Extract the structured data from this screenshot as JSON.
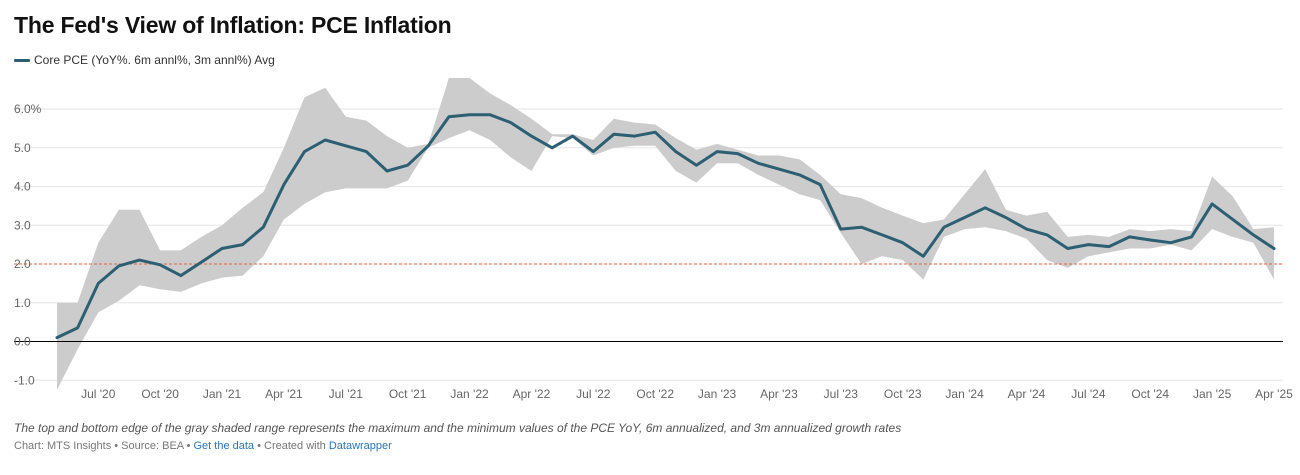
{
  "header": {
    "title": "The Fed's View of Inflation: PCE Inflation"
  },
  "legend": {
    "label": "Core PCE (YoY%. 6m annl%, 3m annl%) Avg"
  },
  "colors": {
    "line": "#2d5f73",
    "band": "#cccccc",
    "target": "#e0643a",
    "grid": "#e6e6e6",
    "zero": "#000000"
  },
  "chart_data": {
    "type": "line",
    "title": "The Fed's View of Inflation: PCE Inflation",
    "xlabel": "",
    "ylabel": "",
    "ylim": [
      -1.2,
      6.8
    ],
    "yticks": [
      -1,
      0,
      1,
      2,
      3,
      4,
      5,
      6
    ],
    "ytick_labels": [
      "-1.0",
      "0.0",
      "1.0",
      "2.0",
      "3.0",
      "4.0",
      "5.0",
      "6.0%"
    ],
    "xticks": [
      {
        "index": 2,
        "label": "Jul '20"
      },
      {
        "index": 5,
        "label": "Oct '20"
      },
      {
        "index": 8,
        "label": "Jan '21"
      },
      {
        "index": 11,
        "label": "Apr '21"
      },
      {
        "index": 14,
        "label": "Jul '21"
      },
      {
        "index": 17,
        "label": "Oct '21"
      },
      {
        "index": 20,
        "label": "Jan '22"
      },
      {
        "index": 23,
        "label": "Apr '22"
      },
      {
        "index": 26,
        "label": "Jul '22"
      },
      {
        "index": 29,
        "label": "Oct '22"
      },
      {
        "index": 32,
        "label": "Jan '23"
      },
      {
        "index": 35,
        "label": "Apr '23"
      },
      {
        "index": 38,
        "label": "Jul '23"
      },
      {
        "index": 41,
        "label": "Oct '23"
      },
      {
        "index": 44,
        "label": "Jan '24"
      },
      {
        "index": 47,
        "label": "Apr '24"
      },
      {
        "index": 50,
        "label": "Jul '24"
      },
      {
        "index": 53,
        "label": "Oct '24"
      },
      {
        "index": 56,
        "label": "Jan '25"
      },
      {
        "index": 59,
        "label": "Apr '25"
      }
    ],
    "target_line": 2.0,
    "series": [
      {
        "name": "Core PCE (YoY%. 6m annl%, 3m annl%) Avg",
        "values": [
          0.1,
          0.35,
          1.5,
          1.95,
          2.1,
          1.98,
          1.7,
          2.05,
          2.4,
          2.5,
          2.95,
          4.05,
          4.9,
          5.2,
          5.05,
          4.9,
          4.4,
          4.55,
          5.05,
          5.8,
          5.85,
          5.85,
          5.65,
          5.3,
          5.0,
          5.3,
          4.9,
          5.35,
          5.3,
          5.4,
          4.9,
          4.55,
          4.9,
          4.85,
          4.6,
          4.45,
          4.3,
          4.05,
          2.9,
          2.95,
          2.75,
          2.55,
          2.2,
          2.95,
          3.2,
          3.45,
          3.2,
          2.9,
          2.75,
          2.4,
          2.5,
          2.45,
          2.7,
          2.62,
          2.55,
          2.7,
          3.55,
          3.15,
          2.75,
          2.4
        ]
      },
      {
        "name": "Range max",
        "values": [
          1.0,
          1.0,
          2.55,
          3.4,
          3.4,
          2.35,
          2.35,
          2.7,
          3.0,
          3.45,
          3.85,
          5.0,
          6.3,
          6.55,
          5.8,
          5.7,
          5.3,
          5.0,
          5.1,
          6.8,
          6.8,
          6.4,
          6.1,
          5.75,
          5.35,
          5.35,
          5.2,
          5.75,
          5.65,
          5.6,
          5.25,
          4.95,
          5.1,
          4.95,
          4.8,
          4.8,
          4.7,
          4.3,
          3.8,
          3.7,
          3.45,
          3.25,
          3.05,
          3.15,
          3.8,
          4.45,
          3.4,
          3.25,
          3.35,
          2.7,
          2.75,
          2.7,
          2.9,
          2.85,
          2.9,
          2.85,
          4.25,
          3.75,
          2.9,
          2.95
        ]
      },
      {
        "name": "Range min",
        "values": [
          -1.25,
          -0.2,
          0.75,
          1.05,
          1.45,
          1.35,
          1.28,
          1.5,
          1.65,
          1.7,
          2.2,
          3.15,
          3.55,
          3.85,
          3.95,
          3.95,
          3.95,
          4.15,
          5.0,
          5.25,
          5.45,
          5.2,
          4.75,
          4.4,
          5.3,
          5.25,
          4.8,
          5.0,
          5.05,
          5.05,
          4.4,
          4.1,
          4.6,
          4.6,
          4.3,
          4.05,
          3.8,
          3.65,
          2.8,
          2.0,
          2.2,
          2.1,
          1.6,
          2.7,
          2.9,
          2.95,
          2.85,
          2.65,
          2.1,
          1.9,
          2.2,
          2.3,
          2.4,
          2.4,
          2.5,
          2.35,
          2.9,
          2.7,
          2.55,
          1.6
        ]
      }
    ]
  },
  "note": "The top and bottom edge of the gray shaded range represents the maximum and the minimum values of the PCE YoY, 6m annualized, and 3m annualized growth rates",
  "footer": {
    "prefix": "Chart: MTS Insights • Source: BEA • ",
    "get_data": "Get the data",
    "mid": " • Created with ",
    "datawrapper": "Datawrapper"
  }
}
